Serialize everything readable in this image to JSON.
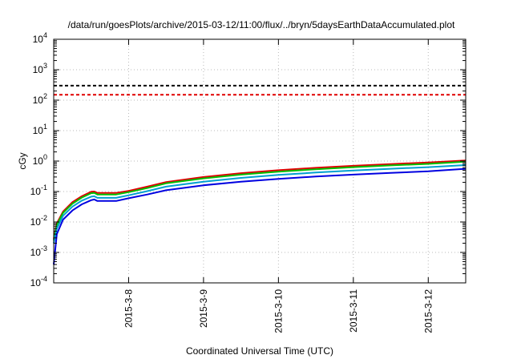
{
  "chart_data": {
    "type": "line",
    "title": "/data/run/goesPlots/archive/2015-03-12/11:00/flux/../bryn/5daysEarthDataAccumulated.plot",
    "xlabel": "Coordinated Universal Time (UTC)",
    "ylabel": "cGy",
    "xscale": "time",
    "xlim": [
      "2015-03-07 00:00",
      "2015-03-12 12:00"
    ],
    "yscale": "log",
    "ylim": [
      0.0001,
      10000
    ],
    "x_ticks": [
      "2015-3-8",
      "2015-3-9",
      "2015-3-10",
      "2015-3-11",
      "2015-3-12"
    ],
    "y_ticks": [
      {
        "base": "10",
        "exp": "-4"
      },
      {
        "base": "10",
        "exp": "-3"
      },
      {
        "base": "10",
        "exp": "-2"
      },
      {
        "base": "10",
        "exp": "-1"
      },
      {
        "base": "10",
        "exp": "0"
      },
      {
        "base": "10",
        "exp": "1"
      },
      {
        "base": "10",
        "exp": "2"
      },
      {
        "base": "10",
        "exp": "3"
      },
      {
        "base": "10",
        "exp": "4"
      }
    ],
    "grid": true,
    "legend": "none",
    "series": [
      {
        "color": "#e00000",
        "x": [
          "2015-03-07 00:00",
          "2015-03-07 01:00",
          "2015-03-07 03:00",
          "2015-03-07 06:00",
          "2015-03-07 09:00",
          "2015-03-07 12:00",
          "2015-03-07 13:00",
          "2015-03-07 14:00",
          "2015-03-07 20:00",
          "2015-03-08 00:00",
          "2015-03-08 06:00",
          "2015-03-08 12:00",
          "2015-03-09 00:00",
          "2015-03-09 12:00",
          "2015-03-10 00:00",
          "2015-03-10 12:00",
          "2015-03-11 00:00",
          "2015-03-11 12:00",
          "2015-03-12 00:00",
          "2015-03-12 12:00"
        ],
        "y": [
          0.0028,
          0.009,
          0.022,
          0.045,
          0.07,
          0.098,
          0.1,
          0.09,
          0.09,
          0.105,
          0.145,
          0.205,
          0.3,
          0.4,
          0.5,
          0.6,
          0.7,
          0.8,
          0.9,
          1.05
        ]
      },
      {
        "color": "#00c000",
        "x": [
          "2015-03-07 00:00",
          "2015-03-07 01:00",
          "2015-03-07 03:00",
          "2015-03-07 06:00",
          "2015-03-07 09:00",
          "2015-03-07 12:00",
          "2015-03-07 13:00",
          "2015-03-07 14:00",
          "2015-03-07 20:00",
          "2015-03-08 00:00",
          "2015-03-08 06:00",
          "2015-03-08 12:00",
          "2015-03-09 00:00",
          "2015-03-09 12:00",
          "2015-03-10 00:00",
          "2015-03-10 12:00",
          "2015-03-11 00:00",
          "2015-03-11 12:00",
          "2015-03-12 00:00",
          "2015-03-12 12:00"
        ],
        "y": [
          0.0025,
          0.008,
          0.02,
          0.04,
          0.063,
          0.088,
          0.09,
          0.08,
          0.08,
          0.095,
          0.13,
          0.185,
          0.27,
          0.36,
          0.45,
          0.54,
          0.63,
          0.72,
          0.81,
          0.95
        ]
      },
      {
        "color": "#00a0d0",
        "x": [
          "2015-03-07 00:00",
          "2015-03-07 01:00",
          "2015-03-07 03:00",
          "2015-03-07 06:00",
          "2015-03-07 09:00",
          "2015-03-07 12:00",
          "2015-03-07 13:00",
          "2015-03-07 14:00",
          "2015-03-07 20:00",
          "2015-03-08 00:00",
          "2015-03-08 06:00",
          "2015-03-08 12:00",
          "2015-03-09 00:00",
          "2015-03-09 12:00",
          "2015-03-10 00:00",
          "2015-03-10 12:00",
          "2015-03-11 00:00",
          "2015-03-11 12:00",
          "2015-03-12 00:00",
          "2015-03-12 12:00"
        ],
        "y": [
          0.002,
          0.006,
          0.016,
          0.032,
          0.05,
          0.068,
          0.07,
          0.062,
          0.062,
          0.075,
          0.103,
          0.145,
          0.21,
          0.28,
          0.35,
          0.42,
          0.49,
          0.56,
          0.63,
          0.74
        ]
      },
      {
        "color": "#0000e0",
        "x": [
          "2015-03-07 00:00",
          "2015-03-07 01:00",
          "2015-03-07 03:00",
          "2015-03-07 06:00",
          "2015-03-07 09:00",
          "2015-03-07 12:00",
          "2015-03-07 13:00",
          "2015-03-07 14:00",
          "2015-03-07 20:00",
          "2015-03-08 00:00",
          "2015-03-08 06:00",
          "2015-03-08 12:00",
          "2015-03-09 00:00",
          "2015-03-09 12:00",
          "2015-03-10 00:00",
          "2015-03-10 12:00",
          "2015-03-11 00:00",
          "2015-03-11 12:00",
          "2015-03-12 00:00",
          "2015-03-12 12:00"
        ],
        "y": [
          0.0004,
          0.004,
          0.012,
          0.024,
          0.038,
          0.052,
          0.055,
          0.049,
          0.049,
          0.06,
          0.08,
          0.11,
          0.16,
          0.21,
          0.26,
          0.31,
          0.36,
          0.41,
          0.46,
          0.56
        ]
      }
    ],
    "thresholds": [
      {
        "color": "#000000",
        "y": 300,
        "style": "dashed"
      },
      {
        "color": "#e00000",
        "y": 150,
        "style": "dashed"
      }
    ]
  }
}
